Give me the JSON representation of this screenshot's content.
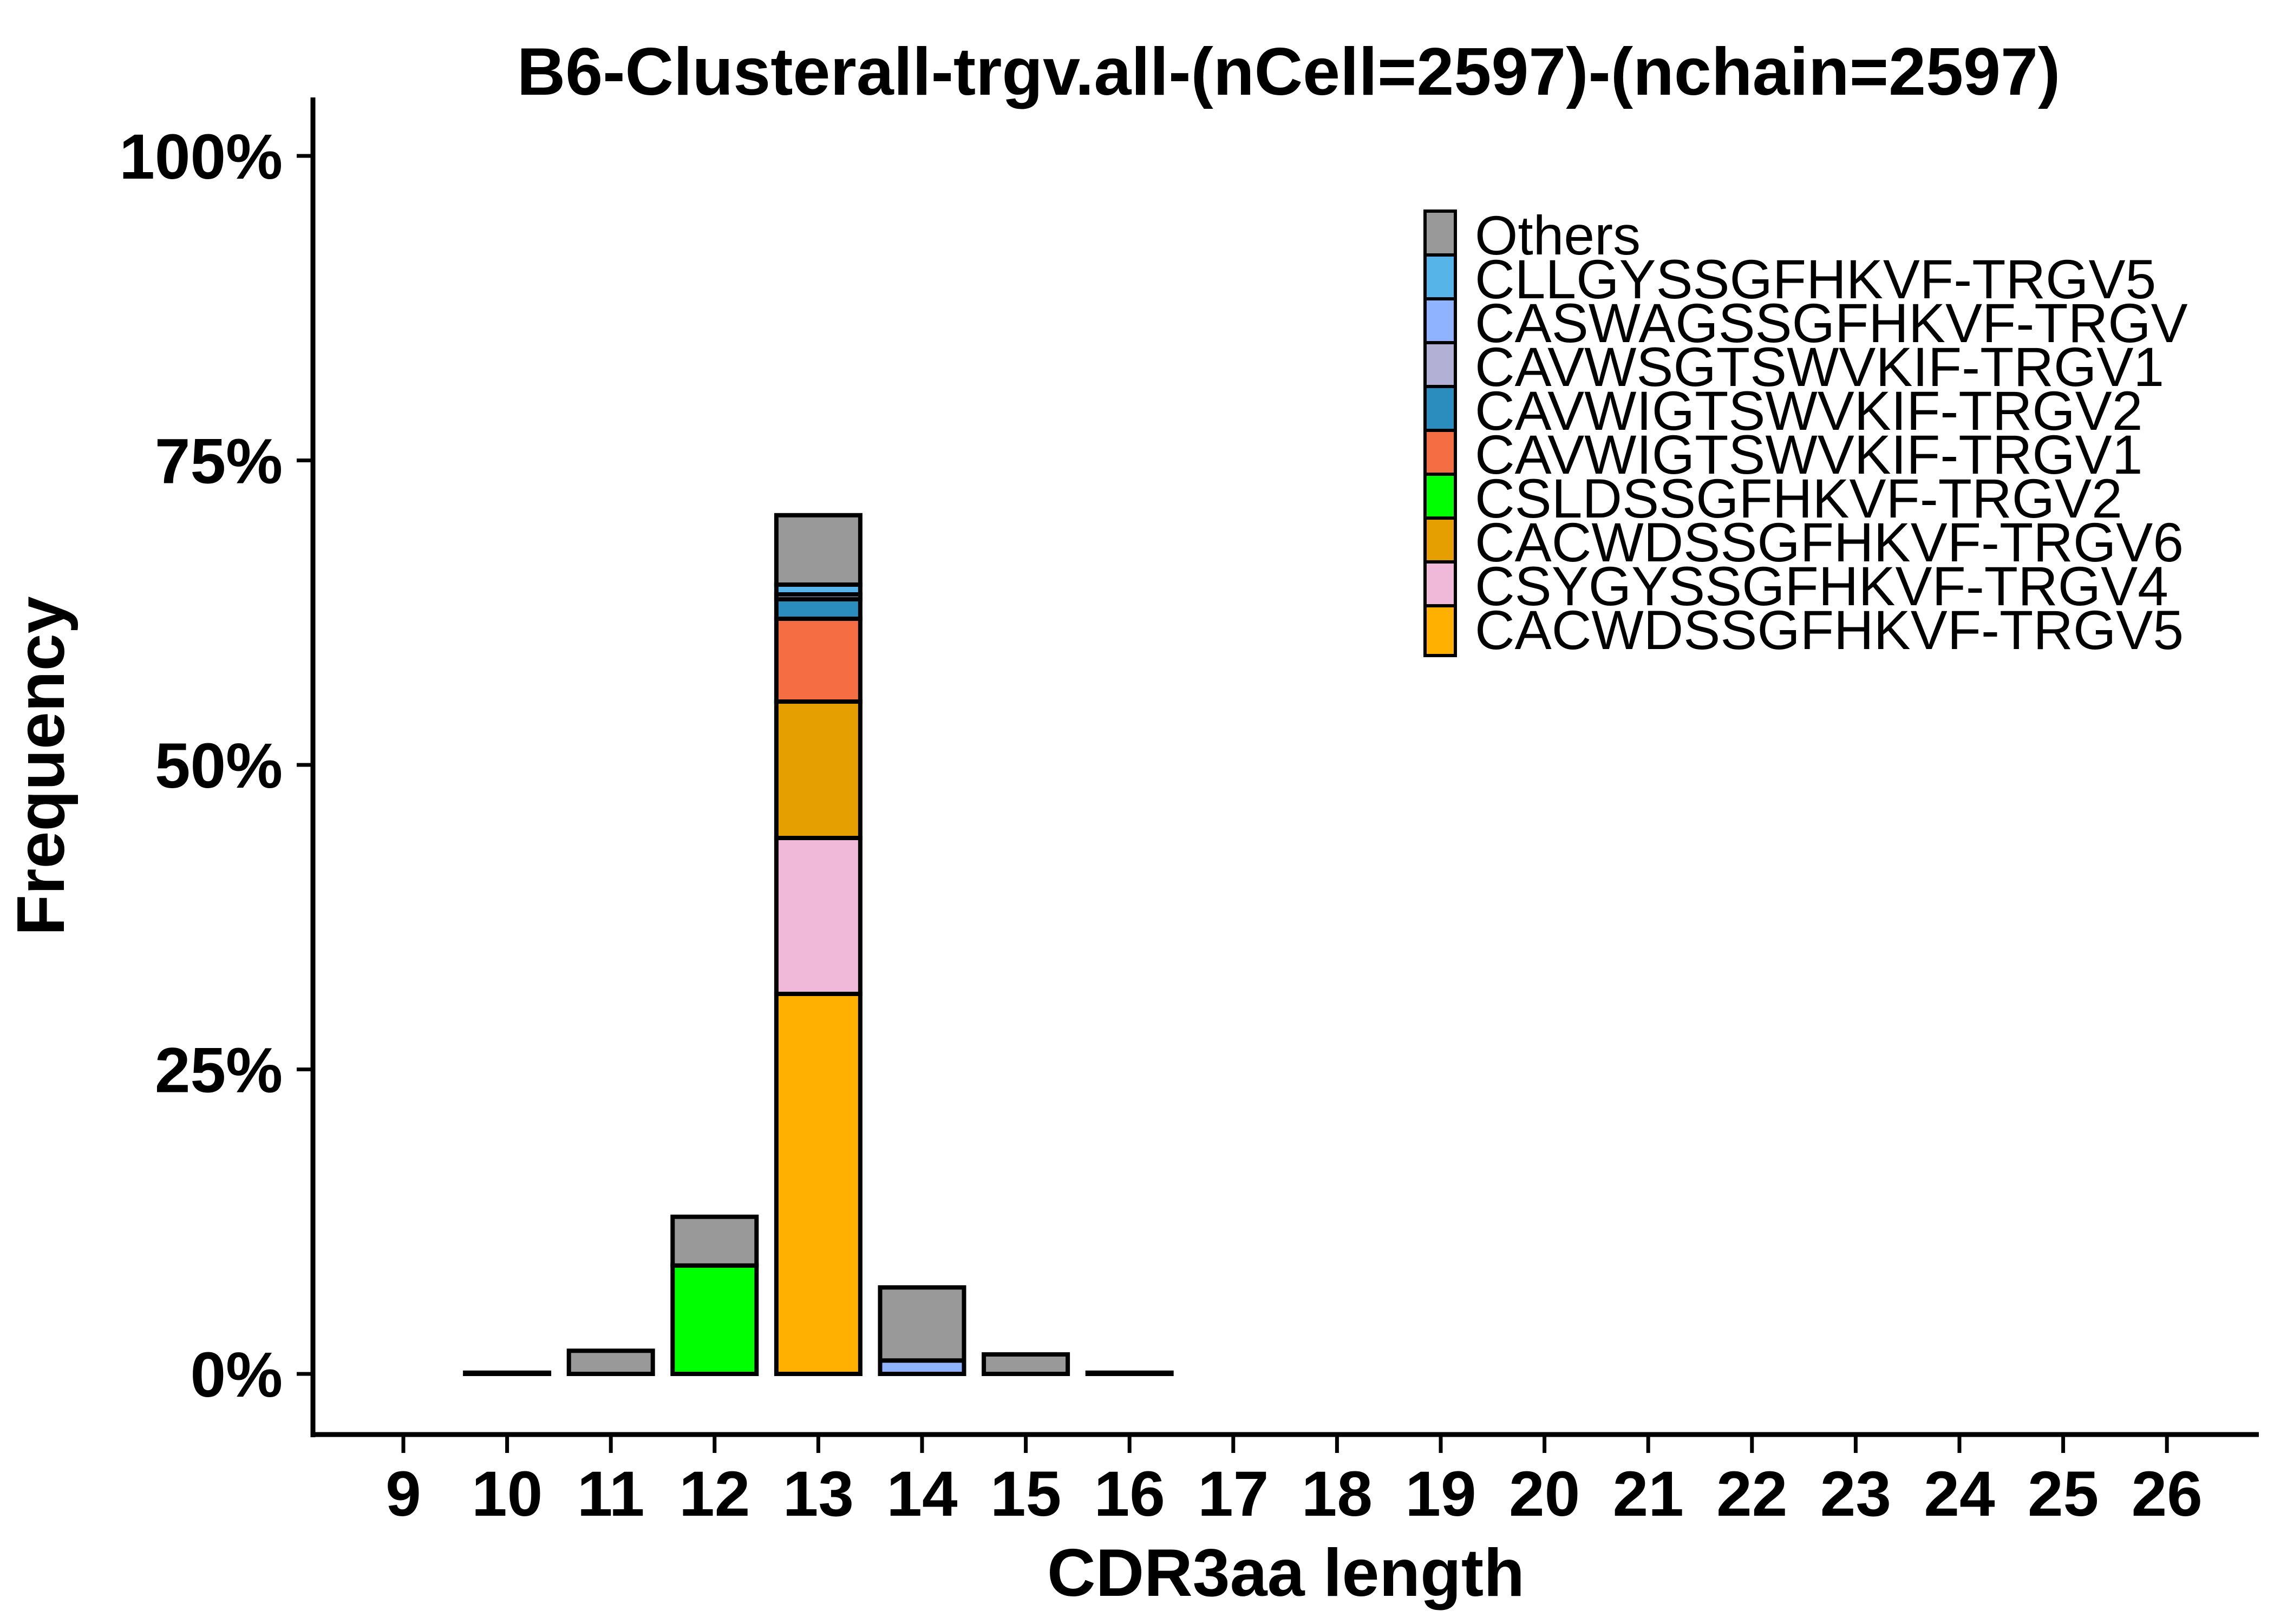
{
  "chart_data": {
    "type": "bar",
    "stacked": true,
    "title": "B6-Clusterall-trgv.all-(nCell=2597)-(nchain=2597)",
    "xlabel": "CDR3aa length",
    "ylabel": "Frequency",
    "ylim": [
      0,
      1
    ],
    "y_ticks": [
      0,
      0.25,
      0.5,
      0.75,
      1.0
    ],
    "y_tick_labels": [
      "0%",
      "25%",
      "50%",
      "75%",
      "100%"
    ],
    "categories": [
      "9",
      "10",
      "11",
      "12",
      "13",
      "14",
      "15",
      "16",
      "17",
      "18",
      "19",
      "20",
      "21",
      "22",
      "23",
      "24",
      "25",
      "26"
    ],
    "legend_position": "top-right",
    "series": [
      {
        "name": "CACWDSSGFHKVF-TRGV5",
        "color": "#FFB000",
        "values": [
          0,
          0,
          0,
          0,
          0.312,
          0,
          0,
          0,
          0,
          0,
          0,
          0,
          0,
          0,
          0,
          0,
          0,
          0
        ]
      },
      {
        "name": "CSYGYSSGFHKVF-TRGV4",
        "color": "#F1B9D9",
        "values": [
          0,
          0,
          0,
          0,
          0.128,
          0,
          0,
          0,
          0,
          0,
          0,
          0,
          0,
          0,
          0,
          0,
          0,
          0
        ]
      },
      {
        "name": "CACWDSSGFHKVF-TRGV6",
        "color": "#E59F01",
        "values": [
          0,
          0,
          0,
          0,
          0.112,
          0,
          0,
          0,
          0,
          0,
          0,
          0,
          0,
          0,
          0,
          0,
          0,
          0
        ]
      },
      {
        "name": "CSLDSSGFHKVF-TRGV2",
        "color": "#00FF00",
        "values": [
          0,
          0,
          0,
          0.089,
          0,
          0,
          0,
          0,
          0,
          0,
          0,
          0,
          0,
          0,
          0,
          0,
          0,
          0
        ]
      },
      {
        "name": "CAVWIGTSWVKIF-TRGV1",
        "color": "#F46D43",
        "values": [
          0,
          0,
          0,
          0,
          0.068,
          0,
          0,
          0,
          0,
          0,
          0,
          0,
          0,
          0,
          0,
          0,
          0,
          0
        ]
      },
      {
        "name": "CAVWIGTSWVKIF-TRGV2",
        "color": "#2B8CBE",
        "values": [
          0,
          0,
          0,
          0,
          0.016,
          0,
          0,
          0,
          0,
          0,
          0,
          0,
          0,
          0,
          0,
          0,
          0,
          0
        ]
      },
      {
        "name": "CAVWSGTSWVKIF-TRGV1",
        "color": "#B3B0D6",
        "values": [
          0,
          0,
          0,
          0,
          0.004,
          0,
          0,
          0,
          0,
          0,
          0,
          0,
          0,
          0,
          0,
          0,
          0,
          0
        ]
      },
      {
        "name": "CASWAGSSGFHKVF-TRGV",
        "color": "#8FB3FF",
        "values": [
          0,
          0,
          0,
          0,
          0,
          0.011,
          0,
          0,
          0,
          0,
          0,
          0,
          0,
          0,
          0,
          0,
          0,
          0
        ]
      },
      {
        "name": "CLLGYSSGFHKVF-TRGV5",
        "color": "#56B4E9",
        "values": [
          0,
          0,
          0,
          0,
          0.008,
          0,
          0,
          0,
          0,
          0,
          0,
          0,
          0,
          0,
          0,
          0,
          0,
          0
        ]
      },
      {
        "name": "Others",
        "color": "#999999",
        "values": [
          0,
          0.001,
          0.019,
          0.04,
          0.057,
          0.06,
          0.016,
          0.001,
          0,
          0,
          0,
          0,
          0,
          0,
          0,
          0,
          0,
          0
        ]
      }
    ]
  }
}
